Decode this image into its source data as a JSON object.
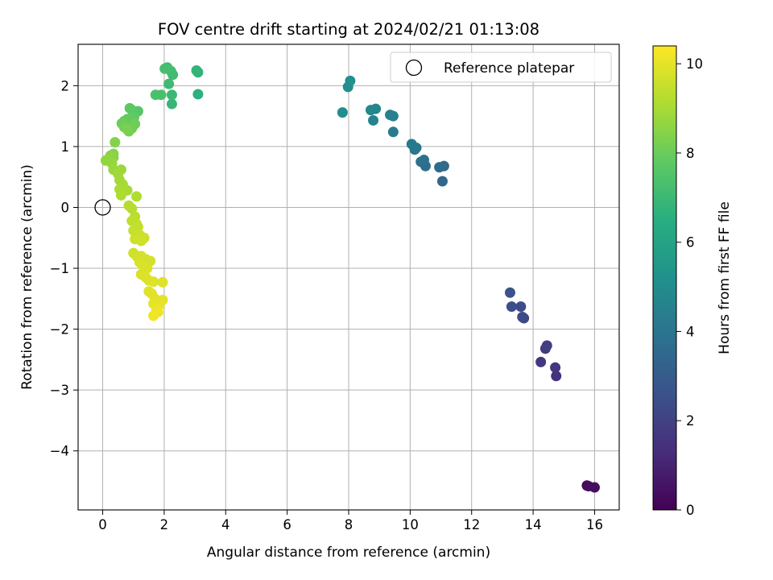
{
  "chart_data": {
    "type": "scatter",
    "title": "FOV centre drift starting at 2024/02/21 01:13:08",
    "xlabel": "Angular distance from reference (arcmin)",
    "ylabel": "Rotation from reference (arcmin)",
    "colorbar_label": "Hours from first FF file",
    "xlim": [
      -0.8,
      16.8
    ],
    "ylim": [
      -4.97,
      2.68
    ],
    "xticks": [
      0,
      2,
      4,
      6,
      8,
      10,
      12,
      14,
      16
    ],
    "yticks": [
      -4,
      -3,
      -2,
      -1,
      0,
      1,
      2
    ],
    "colorbar_range": [
      0,
      10.4
    ],
    "colorbar_ticks": [
      0,
      2,
      4,
      6,
      8,
      10
    ],
    "colormap": "viridis",
    "grid": true,
    "legend_position": "top-right",
    "legend": [
      {
        "label": "Reference platepar",
        "marker": "open-circle"
      }
    ],
    "reference_point": {
      "x": 0,
      "y": 0
    },
    "points": [
      {
        "x": 15.75,
        "y": -4.57,
        "c": 0.2
      },
      {
        "x": 15.8,
        "y": -4.58,
        "c": 0.3
      },
      {
        "x": 16.0,
        "y": -4.6,
        "c": 0.4
      },
      {
        "x": 14.75,
        "y": -2.77,
        "c": 1.5
      },
      {
        "x": 14.72,
        "y": -2.63,
        "c": 1.6
      },
      {
        "x": 14.25,
        "y": -2.54,
        "c": 1.7
      },
      {
        "x": 14.4,
        "y": -2.32,
        "c": 1.8
      },
      {
        "x": 14.45,
        "y": -2.27,
        "c": 1.9
      },
      {
        "x": 13.7,
        "y": -1.82,
        "c": 2.2
      },
      {
        "x": 13.65,
        "y": -1.8,
        "c": 2.3
      },
      {
        "x": 13.6,
        "y": -1.63,
        "c": 2.4
      },
      {
        "x": 13.3,
        "y": -1.63,
        "c": 2.5
      },
      {
        "x": 13.25,
        "y": -1.4,
        "c": 2.6
      },
      {
        "x": 11.05,
        "y": 0.43,
        "c": 3.4
      },
      {
        "x": 11.1,
        "y": 0.68,
        "c": 3.5
      },
      {
        "x": 10.95,
        "y": 0.66,
        "c": 3.6
      },
      {
        "x": 10.5,
        "y": 0.68,
        "c": 3.7
      },
      {
        "x": 10.45,
        "y": 0.78,
        "c": 3.8
      },
      {
        "x": 10.35,
        "y": 0.75,
        "c": 3.9
      },
      {
        "x": 10.15,
        "y": 0.95,
        "c": 4.0
      },
      {
        "x": 10.2,
        "y": 0.98,
        "c": 4.1
      },
      {
        "x": 10.05,
        "y": 1.04,
        "c": 4.2
      },
      {
        "x": 9.45,
        "y": 1.24,
        "c": 4.3
      },
      {
        "x": 9.45,
        "y": 1.5,
        "c": 4.4
      },
      {
        "x": 9.35,
        "y": 1.52,
        "c": 4.5
      },
      {
        "x": 8.8,
        "y": 1.43,
        "c": 4.6
      },
      {
        "x": 8.88,
        "y": 1.62,
        "c": 4.7
      },
      {
        "x": 8.72,
        "y": 1.6,
        "c": 4.8
      },
      {
        "x": 7.8,
        "y": 1.56,
        "c": 5.0
      },
      {
        "x": 7.98,
        "y": 1.98,
        "c": 5.1
      },
      {
        "x": 8.05,
        "y": 2.08,
        "c": 5.2
      },
      {
        "x": 3.1,
        "y": 1.86,
        "c": 6.6
      },
      {
        "x": 3.1,
        "y": 2.22,
        "c": 6.7
      },
      {
        "x": 3.05,
        "y": 2.25,
        "c": 6.8
      },
      {
        "x": 2.25,
        "y": 1.7,
        "c": 6.9
      },
      {
        "x": 2.25,
        "y": 1.85,
        "c": 7.0
      },
      {
        "x": 2.15,
        "y": 2.03,
        "c": 7.05
      },
      {
        "x": 2.28,
        "y": 2.18,
        "c": 7.1
      },
      {
        "x": 2.22,
        "y": 2.24,
        "c": 7.15
      },
      {
        "x": 2.1,
        "y": 2.3,
        "c": 7.2
      },
      {
        "x": 2.02,
        "y": 2.28,
        "c": 7.25
      },
      {
        "x": 1.9,
        "y": 1.85,
        "c": 7.3
      },
      {
        "x": 1.72,
        "y": 1.85,
        "c": 7.35
      },
      {
        "x": 1.15,
        "y": 1.58,
        "c": 7.6
      },
      {
        "x": 0.95,
        "y": 1.6,
        "c": 7.7
      },
      {
        "x": 0.88,
        "y": 1.63,
        "c": 7.75
      },
      {
        "x": 1.02,
        "y": 1.48,
        "c": 7.8
      },
      {
        "x": 0.9,
        "y": 1.45,
        "c": 7.85
      },
      {
        "x": 0.8,
        "y": 1.45,
        "c": 7.9
      },
      {
        "x": 0.7,
        "y": 1.42,
        "c": 7.95
      },
      {
        "x": 0.62,
        "y": 1.38,
        "c": 8.0
      },
      {
        "x": 1.05,
        "y": 1.37,
        "c": 8.05
      },
      {
        "x": 0.95,
        "y": 1.3,
        "c": 8.1
      },
      {
        "x": 0.7,
        "y": 1.32,
        "c": 8.15
      },
      {
        "x": 0.85,
        "y": 1.25,
        "c": 8.2
      },
      {
        "x": 0.8,
        "y": 1.28,
        "c": 8.25
      },
      {
        "x": 0.4,
        "y": 1.07,
        "c": 8.4
      },
      {
        "x": 0.35,
        "y": 0.88,
        "c": 8.45
      },
      {
        "x": 0.25,
        "y": 0.85,
        "c": 8.5
      },
      {
        "x": 0.35,
        "y": 0.82,
        "c": 8.55
      },
      {
        "x": 0.2,
        "y": 0.8,
        "c": 8.6
      },
      {
        "x": 0.1,
        "y": 0.77,
        "c": 8.65
      },
      {
        "x": 0.3,
        "y": 0.72,
        "c": 8.7
      },
      {
        "x": 0.35,
        "y": 0.62,
        "c": 8.75
      },
      {
        "x": 0.6,
        "y": 0.62,
        "c": 8.8
      },
      {
        "x": 0.5,
        "y": 0.55,
        "c": 8.85
      },
      {
        "x": 0.55,
        "y": 0.45,
        "c": 8.9
      },
      {
        "x": 0.65,
        "y": 0.38,
        "c": 8.95
      },
      {
        "x": 0.8,
        "y": 0.28,
        "c": 9.0
      },
      {
        "x": 0.55,
        "y": 0.3,
        "c": 9.05
      },
      {
        "x": 0.6,
        "y": 0.2,
        "c": 9.1
      },
      {
        "x": 1.1,
        "y": 0.18,
        "c": 9.15
      },
      {
        "x": 0.85,
        "y": 0.03,
        "c": 9.2
      },
      {
        "x": 0.95,
        "y": -0.02,
        "c": 9.25
      },
      {
        "x": 1.05,
        "y": -0.15,
        "c": 9.3
      },
      {
        "x": 0.95,
        "y": -0.22,
        "c": 9.35
      },
      {
        "x": 1.1,
        "y": -0.27,
        "c": 9.4
      },
      {
        "x": 1.15,
        "y": -0.32,
        "c": 9.45
      },
      {
        "x": 1.0,
        "y": -0.38,
        "c": 9.5
      },
      {
        "x": 1.2,
        "y": -0.45,
        "c": 9.55
      },
      {
        "x": 1.35,
        "y": -0.5,
        "c": 9.6
      },
      {
        "x": 1.05,
        "y": -0.52,
        "c": 9.62
      },
      {
        "x": 1.25,
        "y": -0.55,
        "c": 9.64
      },
      {
        "x": 1.0,
        "y": -0.75,
        "c": 9.66
      },
      {
        "x": 1.1,
        "y": -0.8,
        "c": 9.68
      },
      {
        "x": 1.25,
        "y": -0.8,
        "c": 9.7
      },
      {
        "x": 1.4,
        "y": -0.85,
        "c": 9.72
      },
      {
        "x": 1.55,
        "y": -0.88,
        "c": 9.74
      },
      {
        "x": 1.2,
        "y": -0.9,
        "c": 9.76
      },
      {
        "x": 1.3,
        "y": -0.95,
        "c": 9.78
      },
      {
        "x": 1.45,
        "y": -1.0,
        "c": 9.8
      },
      {
        "x": 1.25,
        "y": -1.1,
        "c": 9.82
      },
      {
        "x": 1.4,
        "y": -1.15,
        "c": 9.84
      },
      {
        "x": 1.5,
        "y": -1.2,
        "c": 9.86
      },
      {
        "x": 1.65,
        "y": -1.22,
        "c": 9.88
      },
      {
        "x": 1.95,
        "y": -1.23,
        "c": 9.9
      },
      {
        "x": 1.5,
        "y": -1.38,
        "c": 9.92
      },
      {
        "x": 1.6,
        "y": -1.42,
        "c": 9.94
      },
      {
        "x": 1.7,
        "y": -1.5,
        "c": 9.96
      },
      {
        "x": 1.95,
        "y": -1.52,
        "c": 9.98
      },
      {
        "x": 1.65,
        "y": -1.58,
        "c": 10.0
      },
      {
        "x": 1.85,
        "y": -1.6,
        "c": 10.05
      },
      {
        "x": 1.75,
        "y": -1.68,
        "c": 10.1
      },
      {
        "x": 1.8,
        "y": -1.72,
        "c": 10.15
      },
      {
        "x": 1.65,
        "y": -1.78,
        "c": 10.2
      }
    ]
  }
}
